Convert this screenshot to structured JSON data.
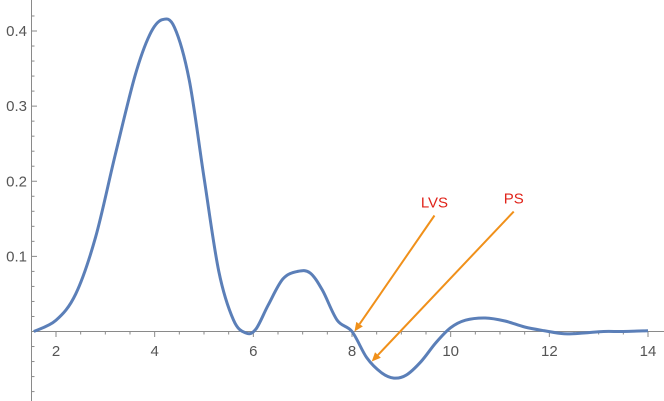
{
  "chart_data": {
    "type": "line",
    "title": "",
    "xlabel": "",
    "ylabel": "",
    "xlim": [
      1.5,
      14.05
    ],
    "ylim": [
      -0.085,
      0.435
    ],
    "x_ticks": [
      2,
      4,
      6,
      8,
      10,
      12,
      14
    ],
    "x_tick_labels": [
      "2",
      "4",
      "6",
      "8",
      "10",
      "12",
      "14"
    ],
    "y_ticks": [
      0.1,
      0.2,
      0.3,
      0.4
    ],
    "y_tick_labels": [
      "0.1",
      "0.2",
      "0.3",
      "0.4"
    ],
    "grid": false,
    "series": [
      {
        "color": "#5b7fb8",
        "x": [
          1.55,
          2.0,
          2.4,
          2.8,
          3.2,
          3.6,
          3.9,
          4.15,
          4.4,
          4.7,
          5.0,
          5.3,
          5.6,
          5.85,
          6.05,
          6.3,
          6.6,
          6.9,
          7.15,
          7.4,
          7.7,
          8.0,
          8.3,
          8.6,
          8.85,
          9.1,
          9.4,
          9.7,
          10.0,
          10.3,
          10.7,
          11.1,
          11.5,
          11.9,
          12.3,
          12.7,
          13.1,
          13.5,
          14.0
        ],
        "y": [
          0.0,
          0.015,
          0.05,
          0.125,
          0.235,
          0.34,
          0.395,
          0.415,
          0.405,
          0.335,
          0.205,
          0.08,
          0.015,
          -0.002,
          0.003,
          0.035,
          0.07,
          0.08,
          0.078,
          0.055,
          0.015,
          0.0,
          -0.035,
          -0.055,
          -0.062,
          -0.058,
          -0.04,
          -0.015,
          0.005,
          0.015,
          0.018,
          0.014,
          0.006,
          0.001,
          -0.003,
          -0.002,
          0.0,
          0.0,
          0.001
        ]
      }
    ],
    "annotations": [
      {
        "text": "LVS",
        "target": [
          8.05,
          0.0
        ],
        "color": "#e0241b",
        "arrow_color": "#f0901a"
      },
      {
        "text": "PS",
        "target": [
          8.4,
          -0.04
        ],
        "color": "#e0241b",
        "arrow_color": "#f0901a"
      }
    ]
  }
}
